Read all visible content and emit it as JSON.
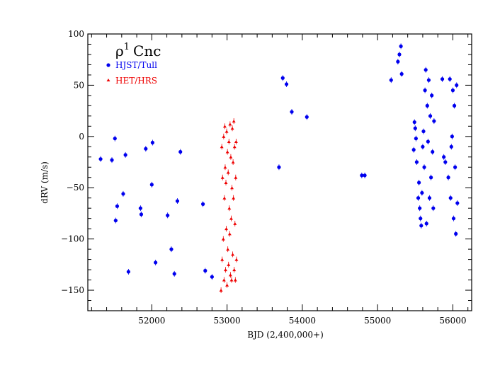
{
  "chart_data": {
    "type": "scatter",
    "title": "Cnc",
    "title_symbol": "ρ",
    "title_superscript": "1",
    "xlabel": "BJD  (2,400,000+)",
    "ylabel": "dRV  (m/s)",
    "xlim": [
      51150,
      56250
    ],
    "ylim": [
      -170,
      100
    ],
    "x_major_ticks": [
      52000,
      53000,
      54000,
      55000,
      56000
    ],
    "x_tick_labels": [
      "52000",
      "53000",
      "54000",
      "55000",
      "56000"
    ],
    "x_minor_step": 200,
    "y_major_ticks": [
      -150,
      -100,
      -50,
      0,
      50,
      100
    ],
    "y_tick_labels": [
      "−150",
      "−100",
      "−50",
      "0",
      "50",
      "100"
    ],
    "y_minor_step": 10,
    "grid": false,
    "legend_placement": "top-left",
    "series": [
      {
        "name": "HJST/Tull",
        "color": "#0000ee",
        "marker": "circle",
        "points": [
          [
            51320,
            -22
          ],
          [
            51470,
            -23
          ],
          [
            51510,
            -2
          ],
          [
            51520,
            -82
          ],
          [
            51540,
            -68
          ],
          [
            51620,
            -56
          ],
          [
            51650,
            -18
          ],
          [
            51690,
            -132
          ],
          [
            51850,
            -70
          ],
          [
            51860,
            -76
          ],
          [
            51920,
            -12
          ],
          [
            52000,
            -47
          ],
          [
            52010,
            -6
          ],
          [
            52050,
            -123
          ],
          [
            52210,
            -77
          ],
          [
            52260,
            -110
          ],
          [
            52300,
            -134
          ],
          [
            52340,
            -63
          ],
          [
            52380,
            -15
          ],
          [
            52680,
            -66
          ],
          [
            52710,
            -131
          ],
          [
            52800,
            -137
          ],
          [
            53690,
            -30
          ],
          [
            53740,
            57
          ],
          [
            53790,
            51
          ],
          [
            53860,
            24
          ],
          [
            54060,
            19
          ],
          [
            54790,
            -38
          ],
          [
            54830,
            -38
          ],
          [
            55180,
            55
          ],
          [
            55270,
            73
          ],
          [
            55290,
            80
          ],
          [
            55310,
            88
          ],
          [
            55320,
            61
          ],
          [
            55480,
            -13
          ],
          [
            55490,
            14
          ],
          [
            55500,
            8
          ],
          [
            55510,
            -2
          ],
          [
            55520,
            -25
          ],
          [
            55540,
            -60
          ],
          [
            55550,
            -45
          ],
          [
            55560,
            -70
          ],
          [
            55570,
            -80
          ],
          [
            55580,
            -87
          ],
          [
            55590,
            -55
          ],
          [
            55600,
            -10
          ],
          [
            55610,
            5
          ],
          [
            55620,
            -30
          ],
          [
            55630,
            45
          ],
          [
            55640,
            65
          ],
          [
            55650,
            -85
          ],
          [
            55660,
            30
          ],
          [
            55670,
            -5
          ],
          [
            55680,
            55
          ],
          [
            55690,
            -60
          ],
          [
            55700,
            20
          ],
          [
            55710,
            -40
          ],
          [
            55720,
            40
          ],
          [
            55730,
            -15
          ],
          [
            55740,
            -70
          ],
          [
            55750,
            15
          ],
          [
            55860,
            56
          ],
          [
            55880,
            -20
          ],
          [
            55900,
            -25
          ],
          [
            55940,
            -40
          ],
          [
            55960,
            56
          ],
          [
            55970,
            -60
          ],
          [
            55980,
            -10
          ],
          [
            55990,
            0
          ],
          [
            56000,
            45
          ],
          [
            56010,
            -80
          ],
          [
            56020,
            30
          ],
          [
            56030,
            -30
          ],
          [
            56040,
            -95
          ],
          [
            56050,
            50
          ],
          [
            56060,
            -65
          ]
        ]
      },
      {
        "name": "HET/HRS",
        "color": "#ee0000",
        "marker": "triangle",
        "points": [
          [
            52920,
            -150
          ],
          [
            52930,
            -10
          ],
          [
            52935,
            -120
          ],
          [
            52940,
            -40
          ],
          [
            52950,
            -100
          ],
          [
            52955,
            0
          ],
          [
            52960,
            -140
          ],
          [
            52965,
            -60
          ],
          [
            52970,
            10
          ],
          [
            52975,
            -30
          ],
          [
            52980,
            -130
          ],
          [
            52985,
            -45
          ],
          [
            52990,
            -90
          ],
          [
            52995,
            5
          ],
          [
            53000,
            -145
          ],
          [
            53005,
            -15
          ],
          [
            53010,
            -110
          ],
          [
            53015,
            -35
          ],
          [
            53020,
            -125
          ],
          [
            53025,
            -5
          ],
          [
            53030,
            -70
          ],
          [
            53035,
            -95
          ],
          [
            53040,
            12
          ],
          [
            53045,
            -135
          ],
          [
            53050,
            -20
          ],
          [
            53055,
            -80
          ],
          [
            53060,
            -140
          ],
          [
            53065,
            -50
          ],
          [
            53070,
            8
          ],
          [
            53075,
            -115
          ],
          [
            53080,
            -25
          ],
          [
            53085,
            -60
          ],
          [
            53090,
            15
          ],
          [
            53095,
            -130
          ],
          [
            53100,
            -10
          ],
          [
            53105,
            -85
          ],
          [
            53110,
            -140
          ],
          [
            53115,
            -40
          ],
          [
            53120,
            -5
          ],
          [
            53125,
            -120
          ]
        ]
      }
    ]
  }
}
